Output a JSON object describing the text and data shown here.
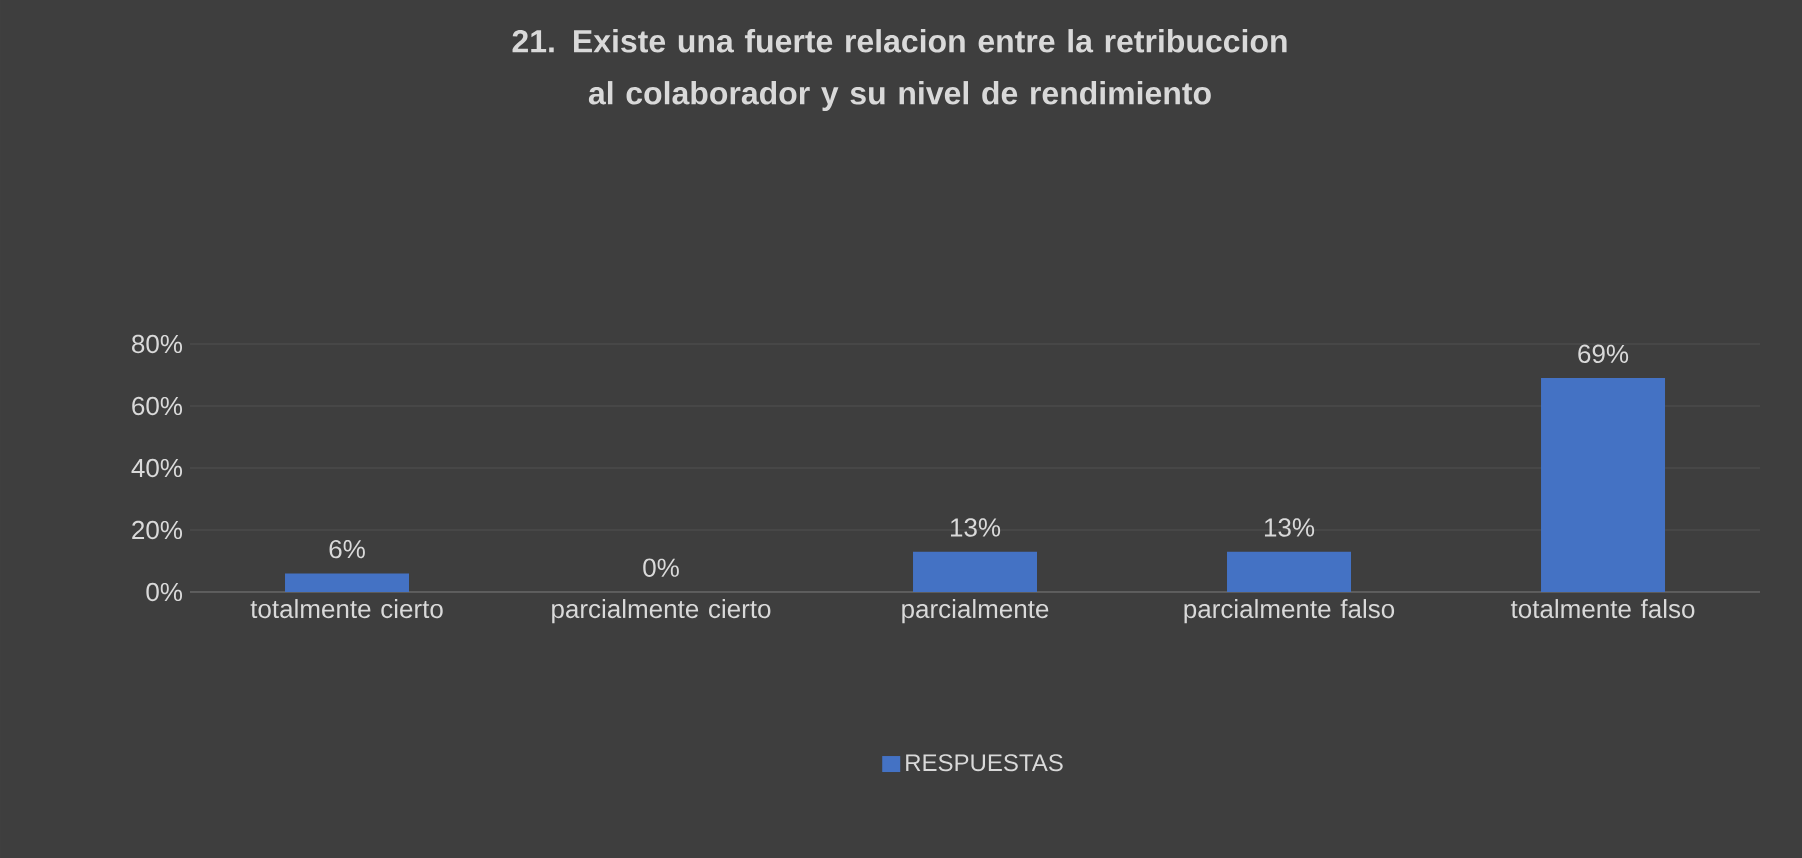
{
  "chart_data": {
    "type": "bar",
    "title": "21. Existe una fuerte relacion entre la retribuccion al colaborador y su nivel de rendimiento",
    "categories": [
      "totalmente cierto",
      "parcialmente cierto",
      "parcialmente",
      "parcialmente falso",
      "totalmente falso"
    ],
    "series": [
      {
        "name": "RESPUESTAS",
        "color": "#4472c4",
        "values": [
          6,
          0,
          13,
          13,
          69
        ],
        "value_labels": [
          "6%",
          "0%",
          "13%",
          "13%",
          "69%"
        ]
      }
    ],
    "ylim": [
      0,
      80
    ],
    "yticks": [
      {
        "value": 0,
        "label": "0%"
      },
      {
        "value": 20,
        "label": "20%"
      },
      {
        "value": 40,
        "label": "40%"
      },
      {
        "value": 60,
        "label": "60%"
      },
      {
        "value": 80,
        "label": "80%"
      }
    ],
    "grid": "y",
    "legend": "bottom"
  }
}
